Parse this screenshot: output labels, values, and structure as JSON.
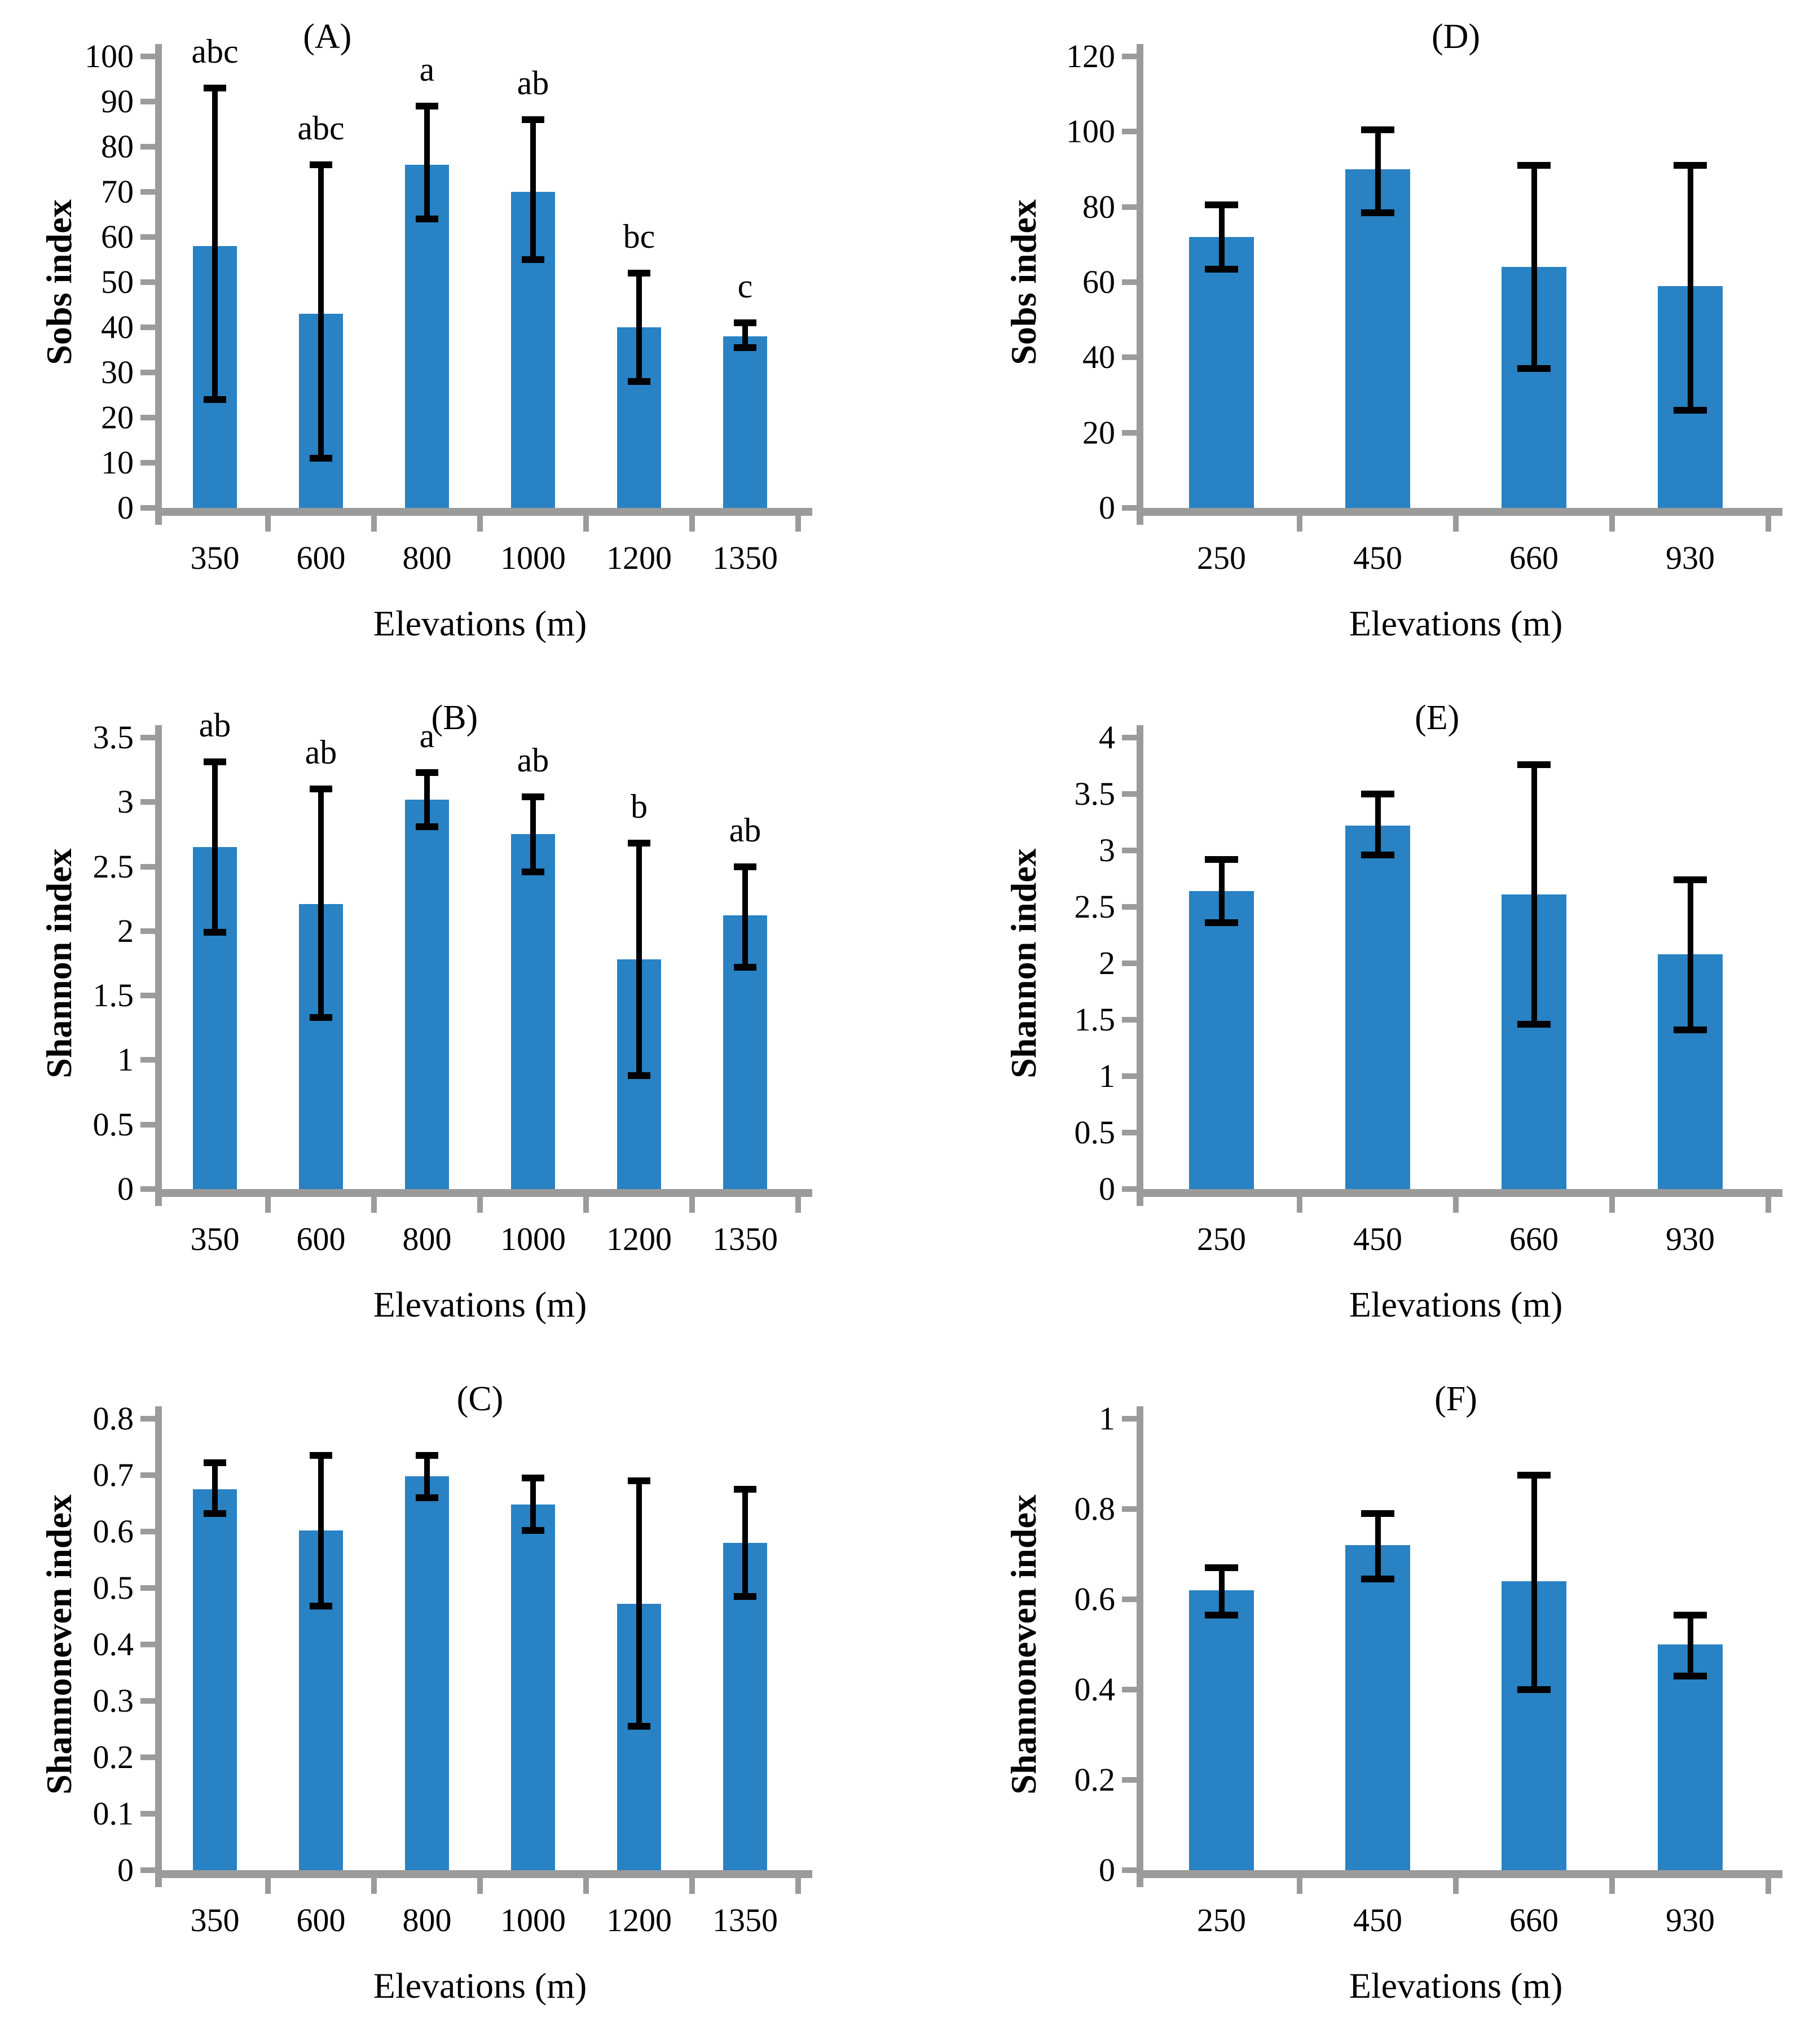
{
  "colors": {
    "bar_fill": "#2882c3",
    "axis_color": "#9b9b9b",
    "error_color": "#000000",
    "text_color": "#000000"
  },
  "chart_data": [
    {
      "id": "A",
      "type": "bar",
      "panel_label": "(A)",
      "y_axis": {
        "label": "Sobs index",
        "min": 0,
        "max": 100,
        "ticks": [
          "0",
          "10",
          "20",
          "30",
          "40",
          "50",
          "60",
          "70",
          "80",
          "90",
          "100"
        ]
      },
      "x_axis": {
        "label": "Elevations (m)",
        "categories": [
          "350",
          "600",
          "800",
          "1000",
          "1200",
          "1350"
        ]
      },
      "bars": {
        "values": [
          58,
          43,
          76,
          70,
          40,
          38
        ],
        "error_low": [
          24,
          11,
          64,
          55,
          28,
          35.5
        ],
        "error_high": [
          93,
          76,
          89,
          86,
          52,
          41
        ],
        "letters": [
          "abc",
          "abc",
          "a",
          "ab",
          "bc",
          "c"
        ]
      },
      "grid": false,
      "legend": "none"
    },
    {
      "id": "B",
      "type": "bar",
      "panel_label": "(B)",
      "y_axis": {
        "label": "Shannon index",
        "min": 0,
        "max": 3.5,
        "ticks": [
          "0",
          "0.5",
          "1",
          "1.5",
          "2",
          "2.5",
          "3",
          "3.5"
        ]
      },
      "x_axis": {
        "label": "Elevations (m)",
        "categories": [
          "350",
          "600",
          "800",
          "1000",
          "1200",
          "1350"
        ]
      },
      "bars": {
        "values": [
          2.65,
          2.21,
          3.02,
          2.75,
          1.78,
          2.12
        ],
        "error_low": [
          1.99,
          1.33,
          2.81,
          2.46,
          0.88,
          1.72
        ],
        "error_high": [
          3.31,
          3.1,
          3.23,
          3.04,
          2.68,
          2.5
        ],
        "letters": [
          "ab",
          "ab",
          "a",
          "ab",
          "b",
          "ab"
        ]
      },
      "grid": false,
      "legend": "none"
    },
    {
      "id": "C",
      "type": "bar",
      "panel_label": "(C)",
      "y_axis": {
        "label": "Shannoneven index",
        "min": 0,
        "max": 0.8,
        "ticks": [
          "0",
          "0.1",
          "0.2",
          "0.3",
          "0.4",
          "0.5",
          "0.6",
          "0.7",
          "0.8"
        ]
      },
      "x_axis": {
        "label": "Elevations (m)",
        "categories": [
          "350",
          "600",
          "800",
          "1000",
          "1200",
          "1350"
        ]
      },
      "bars": {
        "values": [
          0.675,
          0.602,
          0.698,
          0.648,
          0.472,
          0.58
        ],
        "error_low": [
          0.632,
          0.468,
          0.66,
          0.602,
          0.255,
          0.485
        ],
        "error_high": [
          0.722,
          0.735,
          0.735,
          0.695,
          0.69,
          0.675
        ],
        "letters": null
      },
      "grid": false,
      "legend": "none"
    },
    {
      "id": "D",
      "type": "bar",
      "panel_label": "(D)",
      "y_axis": {
        "label": "Sobs index",
        "min": 0,
        "max": 120,
        "ticks": [
          "0",
          "20",
          "40",
          "60",
          "80",
          "100",
          "120"
        ]
      },
      "x_axis": {
        "label": "Elevations (m)",
        "categories": [
          "250",
          "450",
          "660",
          "930"
        ]
      },
      "bars": {
        "values": [
          72,
          90,
          64,
          59
        ],
        "error_low": [
          63.5,
          78.5,
          37,
          26
        ],
        "error_high": [
          80.5,
          100.5,
          91,
          91
        ],
        "letters": null
      },
      "grid": false,
      "legend": "none"
    },
    {
      "id": "E",
      "type": "bar",
      "panel_label": "(E)",
      "y_axis": {
        "label": "Shannon index",
        "min": 0,
        "max": 4,
        "ticks": [
          "0",
          "0.5",
          "1",
          "1.5",
          "2",
          "2.5",
          "3",
          "3.5",
          "4"
        ]
      },
      "x_axis": {
        "label": "Elevations (m)",
        "categories": [
          "250",
          "450",
          "660",
          "930"
        ]
      },
      "bars": {
        "values": [
          2.64,
          3.22,
          2.61,
          2.08
        ],
        "error_low": [
          2.36,
          2.96,
          1.46,
          1.41
        ],
        "error_high": [
          2.92,
          3.5,
          3.76,
          2.74
        ],
        "letters": null
      },
      "grid": false,
      "legend": "none"
    },
    {
      "id": "F",
      "type": "bar",
      "panel_label": "(F)",
      "y_axis": {
        "label": "Shannoneven index",
        "min": 0,
        "max": 1,
        "ticks": [
          "0",
          "0.2",
          "0.4",
          "0.6",
          "0.8",
          "1"
        ]
      },
      "x_axis": {
        "label": "Elevations (m)",
        "categories": [
          "250",
          "450",
          "660",
          "930"
        ]
      },
      "bars": {
        "values": [
          0.62,
          0.72,
          0.64,
          0.5
        ],
        "error_low": [
          0.565,
          0.645,
          0.4,
          0.43
        ],
        "error_high": [
          0.67,
          0.79,
          0.875,
          0.565
        ],
        "letters": null
      },
      "grid": false,
      "legend": "none"
    }
  ]
}
